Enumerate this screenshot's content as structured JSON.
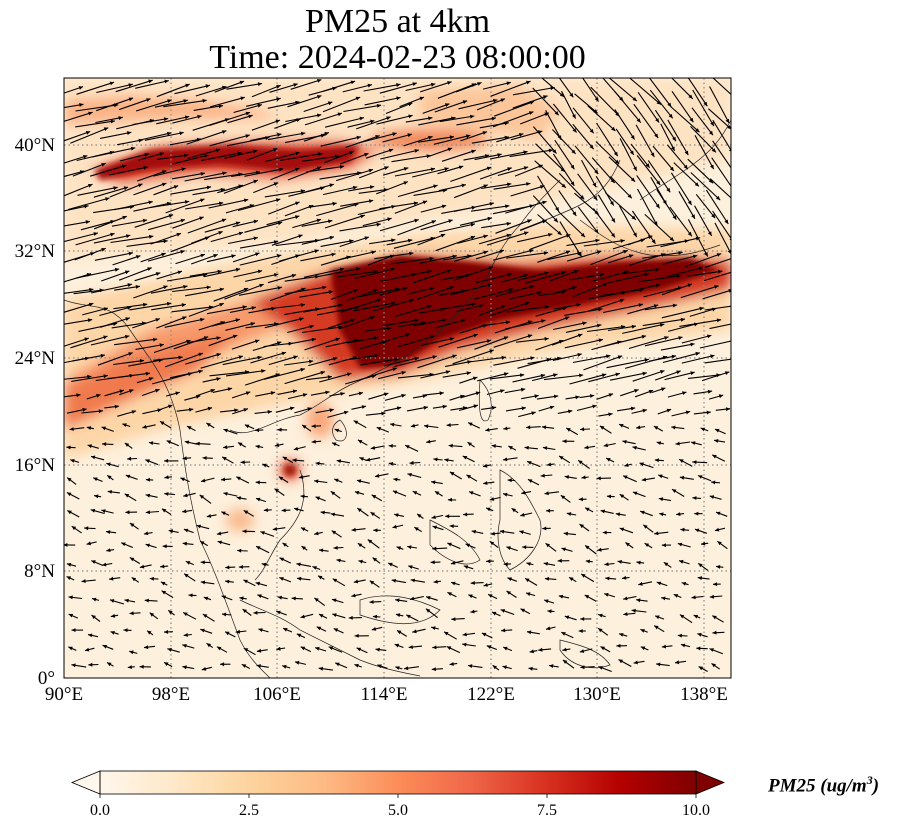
{
  "title": {
    "line1": "PM25 at 4km",
    "line2": "Time: 2024-02-23 08:00:00"
  },
  "map": {
    "projection": "PlateCarree",
    "lon_range": [
      90,
      140
    ],
    "lat_range": [
      0,
      45
    ],
    "x_ticks": [
      "90°E",
      "98°E",
      "106°E",
      "114°E",
      "122°E",
      "130°E",
      "138°E"
    ],
    "y_ticks": [
      "0°",
      "8°N",
      "16°N",
      "24°N",
      "32°N",
      "40°N"
    ],
    "gridlines": "dotted",
    "field": "PM25 concentration (filled)",
    "vectors": "wind arrows (quiver)",
    "high_pm25_regions": [
      "band across northern China near 38-40°N",
      "band from central/southern China to south of Japan near 25-32°N",
      "spot near Cambodia ~15°N 106°E"
    ]
  },
  "colorbar": {
    "colormap": "OrRd",
    "colors": [
      "#fff7ec",
      "#fee8c8",
      "#fdd49e",
      "#fdbb84",
      "#fc8d59",
      "#ef6548",
      "#d7301f",
      "#b30000",
      "#7f0000"
    ],
    "min": 0.0,
    "max": 10.0,
    "extend": "both",
    "tick_labels": [
      "0.0",
      "2.5",
      "5.0",
      "7.5",
      "10.0"
    ],
    "label_prefix": "PM25 (ug/m",
    "label_sup": "3",
    "label_suffix": ")"
  }
}
